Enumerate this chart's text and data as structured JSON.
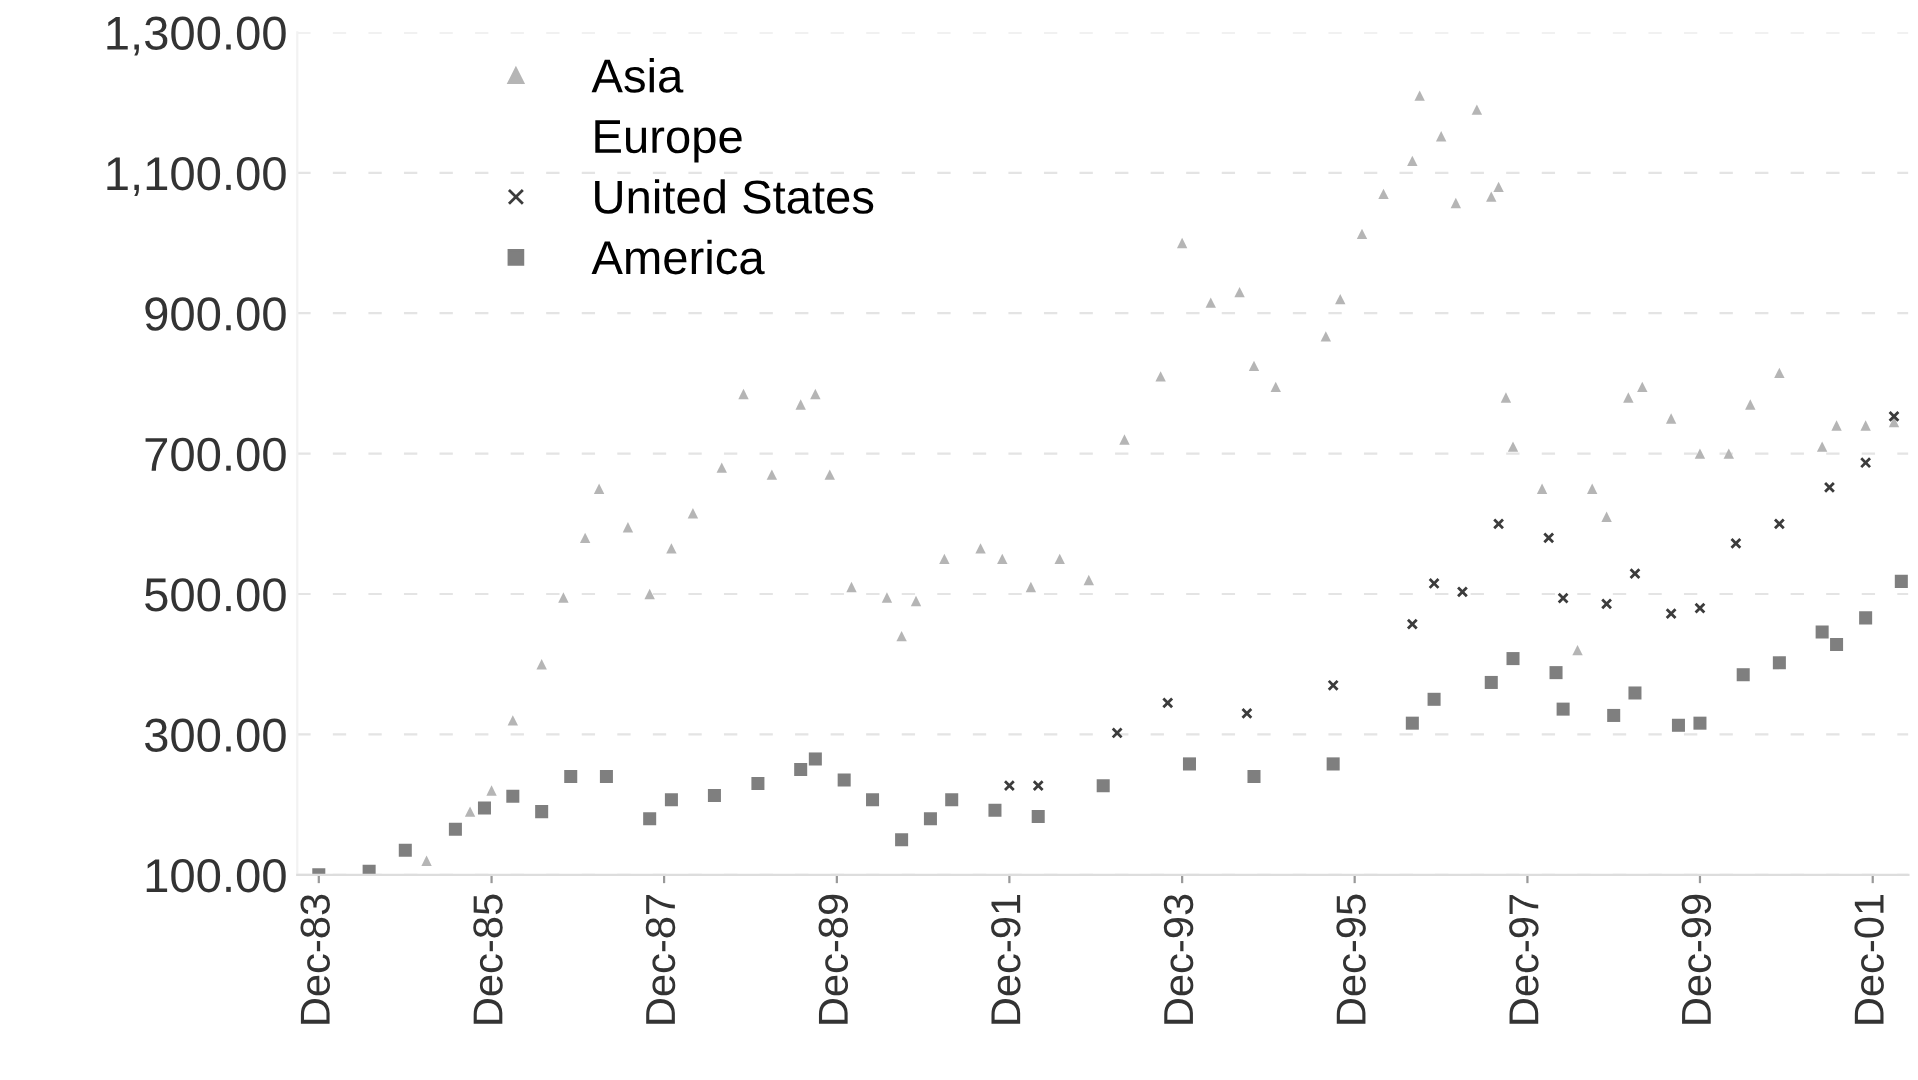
{
  "chart_data": {
    "type": "scatter",
    "series": [
      {
        "name": "Asia",
        "color": "#b5b5b5",
        "marker": "triangle",
        "x": [
          "1985-03",
          "1985-09",
          "1985-12",
          "1986-03",
          "1986-07",
          "1986-10",
          "1987-01",
          "1987-03",
          "1987-07",
          "1987-10",
          "1988-01",
          "1988-04",
          "1988-08",
          "1988-11",
          "1989-03",
          "1989-07",
          "1989-09",
          "1989-11",
          "1990-02",
          "1990-07",
          "1990-09",
          "1990-11",
          "1991-03",
          "1991-08",
          "1991-11",
          "1992-03",
          "1992-07",
          "1992-11",
          "1993-04",
          "1993-09",
          "1993-12",
          "1994-04",
          "1994-08",
          "1994-10",
          "1995-01",
          "1995-08",
          "1995-10",
          "1996-01",
          "1996-04",
          "1996-08",
          "1996-09",
          "1996-12",
          "1997-02",
          "1997-05",
          "1997-07",
          "1997-08",
          "1997-09",
          "1997-10",
          "1998-02",
          "1998-07",
          "1998-09",
          "1998-11",
          "1999-02",
          "1999-04",
          "1999-08",
          "1999-12",
          "2000-04",
          "2000-07",
          "2000-11",
          "2001-05",
          "2001-07",
          "2001-11",
          "2002-03"
        ],
        "values": [
          120,
          190,
          220,
          320,
          400,
          495,
          580,
          650,
          595,
          500,
          565,
          615,
          680,
          785,
          670,
          770,
          785,
          670,
          510,
          495,
          440,
          490,
          550,
          565,
          550,
          510,
          550,
          520,
          720,
          810,
          1000,
          915,
          930,
          825,
          795,
          867,
          920,
          1013,
          1070,
          1117,
          1210,
          1152,
          1057,
          1190,
          1066,
          1080,
          780,
          710,
          650,
          420,
          650,
          610,
          780,
          795,
          750,
          700,
          700,
          770,
          815,
          710,
          740,
          740,
          745
        ]
      },
      {
        "name": "Europe"
      },
      {
        "name": "United States",
        "color": "#3c3c3c",
        "marker": "cross",
        "x": [
          "1991-12",
          "1992-04",
          "1993-03",
          "1993-10",
          "1994-09",
          "1995-09",
          "1996-08",
          "1996-11",
          "1997-03",
          "1997-08",
          "1998-03",
          "1998-05",
          "1998-11",
          "1999-03",
          "1999-08",
          "1999-12",
          "2000-05",
          "2000-11",
          "2001-06",
          "2001-11",
          "2002-03"
        ],
        "values": [
          227,
          227,
          302,
          345,
          330,
          370,
          457,
          515,
          503,
          600,
          580,
          494,
          486,
          529,
          472,
          480,
          572,
          600,
          652,
          687,
          753
        ]
      },
      {
        "name": "America",
        "color": "#7f7f7f",
        "marker": "square",
        "x": [
          "1983-12",
          "1984-07",
          "1984-12",
          "1985-07",
          "1985-11",
          "1986-03",
          "1986-07",
          "1986-11",
          "1987-04",
          "1987-10",
          "1988-01",
          "1988-07",
          "1989-01",
          "1989-07",
          "1989-09",
          "1990-01",
          "1990-05",
          "1990-09",
          "1991-01",
          "1991-04",
          "1991-10",
          "1992-04",
          "1993-01",
          "1994-01",
          "1994-10",
          "1995-09",
          "1996-08",
          "1996-11",
          "1997-07",
          "1997-10",
          "1998-04",
          "1998-05",
          "1998-12",
          "1999-03",
          "1999-09",
          "1999-12",
          "2000-06",
          "2000-11",
          "2001-05",
          "2001-07",
          "2001-11",
          "2002-04"
        ],
        "values": [
          100,
          105,
          135,
          165,
          195,
          212,
          190,
          240,
          240,
          180,
          207,
          213,
          230,
          250,
          265,
          235,
          207,
          150,
          180,
          207,
          192,
          183,
          227,
          258,
          240,
          258,
          316,
          350,
          374,
          408,
          388,
          336,
          327,
          359,
          313,
          316,
          385,
          402,
          446,
          428,
          466,
          518
        ]
      }
    ],
    "xlim": [
      "1983-09",
      "2002-05"
    ],
    "xticks": [
      {
        "value": "1983-12",
        "label": "Dec-83"
      },
      {
        "value": "1985-12",
        "label": "Dec-85"
      },
      {
        "value": "1987-12",
        "label": "Dec-87"
      },
      {
        "value": "1989-12",
        "label": "Dec-89"
      },
      {
        "value": "1991-12",
        "label": "Dec-91"
      },
      {
        "value": "1993-12",
        "label": "Dec-93"
      },
      {
        "value": "1995-12",
        "label": "Dec-95"
      },
      {
        "value": "1997-12",
        "label": "Dec-97"
      },
      {
        "value": "1999-12",
        "label": "Dec-99"
      },
      {
        "value": "2001-12",
        "label": "Dec-01"
      }
    ],
    "ylim": [
      100,
      1300
    ],
    "yticks": [
      {
        "value": 100,
        "label": "100.00"
      },
      {
        "value": 300,
        "label": "300.00"
      },
      {
        "value": 500,
        "label": "500.00"
      },
      {
        "value": 700,
        "label": "700.00"
      },
      {
        "value": 900,
        "label": "900.00"
      },
      {
        "value": 1100,
        "label": "1,100.00"
      },
      {
        "value": 1300,
        "label": "1,300.00"
      }
    ],
    "grid": "y",
    "legend": "top left"
  }
}
